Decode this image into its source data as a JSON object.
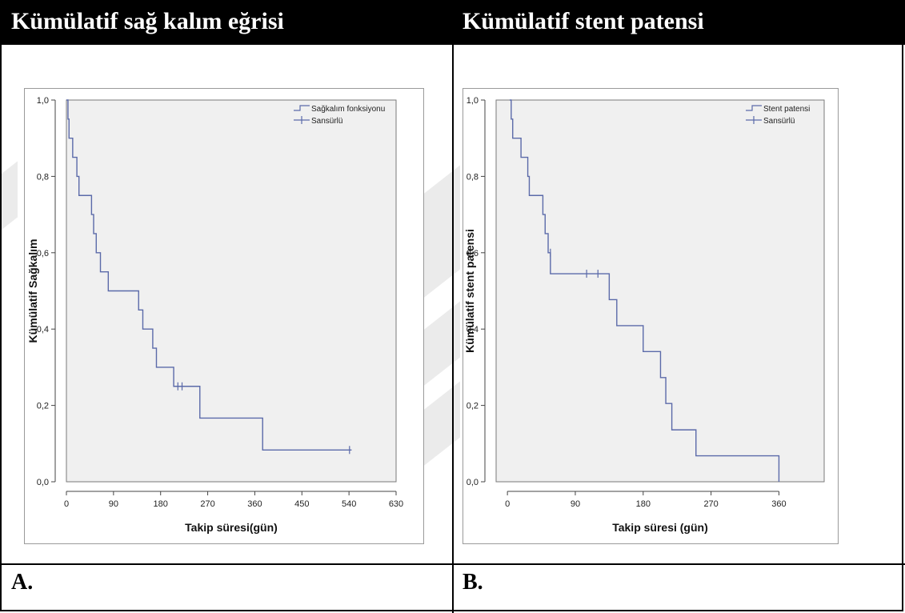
{
  "header": {
    "left_title": "Kümülatif sağ kalım eğrisi",
    "right_title": "Kümülatif stent patensi"
  },
  "panel_labels": {
    "a": "A.",
    "b": "B."
  },
  "colors": {
    "line": "#5b6aa9",
    "plot_bg": "#f0f0f0",
    "header_bg": "#000000"
  },
  "chart_data": [
    {
      "type": "line",
      "step": true,
      "xlabel": "Takip süresi(gün)",
      "ylabel": "Kümülatif Sağkalım",
      "xlim": [
        0,
        630
      ],
      "ylim": [
        0,
        1
      ],
      "xticks": [
        0,
        90,
        180,
        270,
        360,
        450,
        540,
        630
      ],
      "xtick_labels": [
        "0",
        "90",
        "180",
        "270",
        "360",
        "450",
        "540",
        "630"
      ],
      "yticks": [
        0,
        0.2,
        0.4,
        0.6,
        0.8,
        1.0
      ],
      "ytick_labels": [
        "0,0",
        "0,2",
        "0,4",
        "0,6",
        "0,8",
        "1,0"
      ],
      "legend_position": "top-right",
      "legend": [
        "Sağkalım fonksiyonu",
        "Sansürlü"
      ],
      "series": [
        {
          "name": "Sağkalım fonksiyonu",
          "x": [
            0,
            3,
            5,
            12,
            20,
            24,
            32,
            48,
            52,
            57,
            65,
            80,
            138,
            146,
            165,
            172,
            188,
            205,
            214,
            255,
            375,
            545
          ],
          "y": [
            1.0,
            0.95,
            0.9,
            0.85,
            0.8,
            0.75,
            0.75,
            0.7,
            0.65,
            0.6,
            0.55,
            0.5,
            0.45,
            0.4,
            0.35,
            0.3,
            0.3,
            0.25,
            0.25,
            0.1667,
            0.0833,
            0.0833
          ]
        }
      ],
      "censored": {
        "x": [
          213,
          221,
          541
        ],
        "y": [
          0.25,
          0.25,
          0.0833
        ]
      }
    },
    {
      "type": "line",
      "step": true,
      "xlabel": "Takip süresi (gün)",
      "ylabel": "Kümülatif stent patensi",
      "xlim": [
        -15,
        420
      ],
      "ylim": [
        0,
        1
      ],
      "xticks": [
        0,
        90,
        180,
        270,
        360
      ],
      "xtick_labels": [
        "0",
        "90",
        "180",
        "270",
        "360"
      ],
      "yticks": [
        0,
        0.2,
        0.4,
        0.6,
        0.8,
        1.0
      ],
      "ytick_labels": [
        "0,0",
        "0,2",
        "0,4",
        "0,6",
        "0,8",
        "1,0"
      ],
      "legend_position": "top-right",
      "legend": [
        "Stent patensi",
        "Sansürlü"
      ],
      "series": [
        {
          "name": "Stent patensi",
          "x": [
            3,
            5,
            7,
            18,
            27,
            29,
            47,
            50,
            54,
            57,
            64,
            105,
            112,
            135,
            145,
            180,
            203,
            210,
            218,
            250,
            360
          ],
          "y": [
            1.0,
            0.95,
            0.9,
            0.85,
            0.8,
            0.75,
            0.7,
            0.65,
            0.6,
            0.545,
            0.545,
            0.545,
            0.545,
            0.477,
            0.409,
            0.341,
            0.273,
            0.205,
            0.136,
            0.068,
            0.0
          ]
        }
      ],
      "censored": {
        "x": [
          57,
          105,
          120
        ],
        "y": [
          0.6,
          0.545,
          0.545
        ]
      }
    }
  ]
}
